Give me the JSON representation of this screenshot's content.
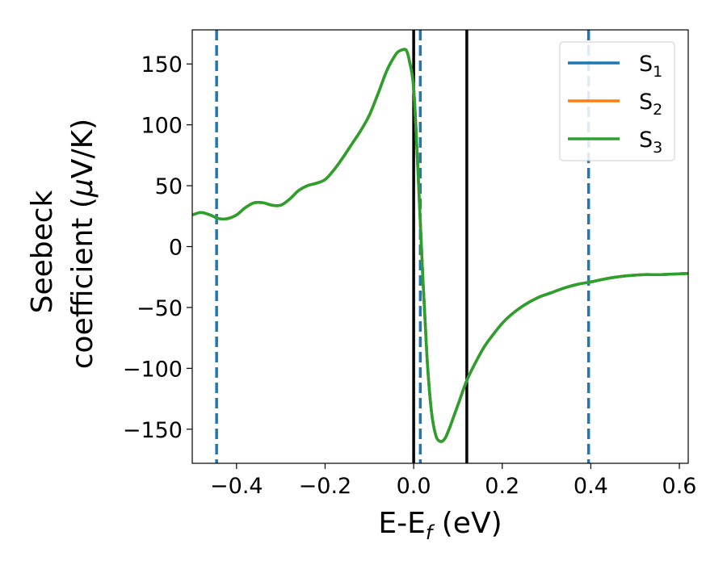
{
  "chart_data": {
    "type": "line",
    "xlabel": "E-E",
    "xlabel_sub": "f",
    "xlabel_unit": " (eV)",
    "ylabel_line1": "Seebeck",
    "ylabel_line2": "coefficient  (",
    "ylabel_mu": "μ",
    "ylabel_unit": "V/K)",
    "xlim": [
      -0.5,
      0.62
    ],
    "ylim": [
      -178,
      178
    ],
    "x_ticks": [
      -0.4,
      -0.2,
      0.0,
      0.2,
      0.4,
      0.6
    ],
    "x_tick_labels": [
      "−0.4",
      "−0.2",
      "0.0",
      "0.2",
      "0.4",
      "0.6"
    ],
    "y_ticks": [
      150,
      100,
      50,
      0,
      -50,
      -100,
      -150
    ],
    "y_tick_labels": [
      "150",
      "100",
      "50",
      "0",
      "−50",
      "−100",
      "−150"
    ],
    "legend": {
      "placement": "top-right",
      "entries": [
        {
          "base": "S",
          "sub": "1",
          "color": "#1f77b4"
        },
        {
          "base": "S",
          "sub": "2",
          "color": "#ff7f0e"
        },
        {
          "base": "S",
          "sub": "3",
          "color": "#2ca02c"
        }
      ]
    },
    "vlines": [
      {
        "x": -0.445,
        "style": "dashed",
        "color": "#1f77b4"
      },
      {
        "x": 0.0,
        "style": "solid",
        "color": "#000000"
      },
      {
        "x": 0.015,
        "style": "dashed",
        "color": "#1f77b4"
      },
      {
        "x": 0.12,
        "style": "solid",
        "color": "#000000"
      },
      {
        "x": 0.395,
        "style": "dashed",
        "color": "#1f77b4"
      }
    ],
    "x": [
      -0.5,
      -0.48,
      -0.46,
      -0.44,
      -0.42,
      -0.4,
      -0.38,
      -0.36,
      -0.34,
      -0.32,
      -0.3,
      -0.28,
      -0.26,
      -0.24,
      -0.22,
      -0.2,
      -0.18,
      -0.16,
      -0.14,
      -0.12,
      -0.1,
      -0.08,
      -0.06,
      -0.04,
      -0.03,
      -0.02,
      -0.015,
      -0.01,
      0.0,
      0.01,
      0.02,
      0.03,
      0.04,
      0.05,
      0.06,
      0.07,
      0.08,
      0.09,
      0.1,
      0.12,
      0.14,
      0.16,
      0.18,
      0.2,
      0.22,
      0.25,
      0.28,
      0.31,
      0.34,
      0.37,
      0.4,
      0.44,
      0.48,
      0.52,
      0.56,
      0.62
    ],
    "series": [
      {
        "name": "S1",
        "color": "#1f77b4",
        "values": [
          26,
          28,
          26,
          23,
          23,
          26,
          32,
          36,
          36,
          34,
          34,
          39,
          46,
          50,
          52,
          55,
          63,
          73,
          84,
          95,
          108,
          126,
          145,
          158,
          161,
          162,
          160,
          153,
          130,
          60,
          -20,
          -90,
          -135,
          -155,
          -160,
          -158,
          -150,
          -140,
          -130,
          -110,
          -95,
          -82,
          -72,
          -63,
          -56,
          -48,
          -42,
          -38,
          -34,
          -31,
          -29,
          -26,
          -24,
          -23,
          -23,
          -22
        ]
      },
      {
        "name": "S2",
        "color": "#ff7f0e",
        "values": [
          26,
          28,
          26,
          23,
          23,
          26,
          32,
          36,
          36,
          34,
          34,
          39,
          46,
          50,
          52,
          55,
          63,
          73,
          84,
          95,
          108,
          126,
          145,
          158,
          161,
          162,
          160,
          153,
          130,
          60,
          -20,
          -90,
          -135,
          -155,
          -160,
          -158,
          -150,
          -140,
          -130,
          -110,
          -95,
          -82,
          -72,
          -63,
          -56,
          -48,
          -42,
          -38,
          -34,
          -31,
          -29,
          -26,
          -24,
          -23,
          -23,
          -22
        ]
      },
      {
        "name": "S3",
        "color": "#2ca02c",
        "values": [
          26,
          28,
          26,
          23,
          23,
          26,
          32,
          36,
          36,
          34,
          34,
          39,
          46,
          50,
          52,
          55,
          63,
          73,
          84,
          95,
          108,
          126,
          145,
          158,
          161,
          162,
          160,
          153,
          130,
          60,
          -20,
          -90,
          -135,
          -155,
          -160,
          -158,
          -150,
          -140,
          -130,
          -110,
          -95,
          -82,
          -72,
          -63,
          -56,
          -48,
          -42,
          -38,
          -34,
          -31,
          -29,
          -26,
          -24,
          -23,
          -23,
          -22
        ]
      }
    ]
  }
}
